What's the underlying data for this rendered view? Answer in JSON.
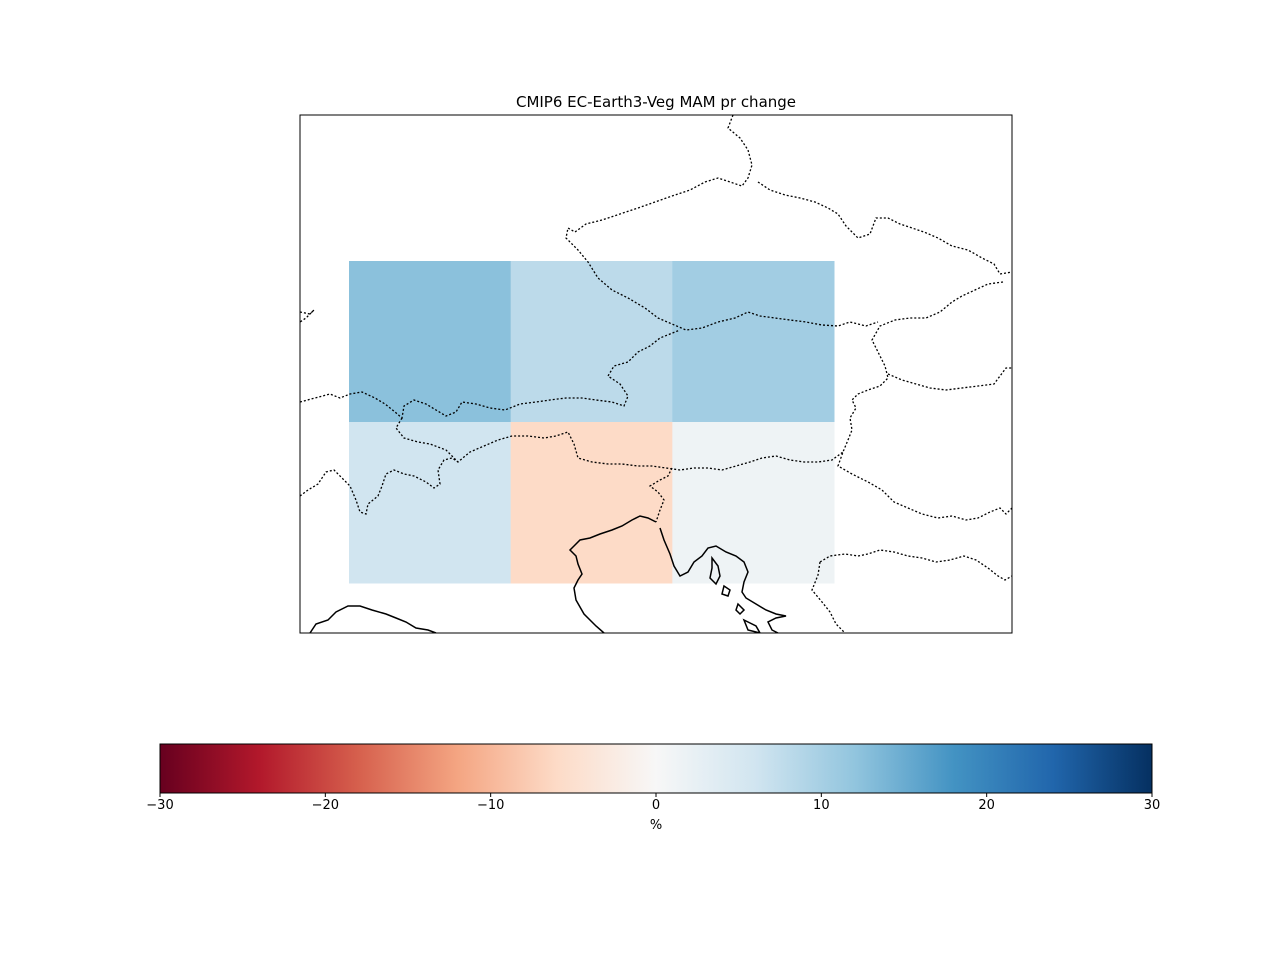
{
  "figure": {
    "title": "CMIP6 EC-Earth3-Veg MAM pr change",
    "colorbar": {
      "label": "%",
      "colormap": "RdBu",
      "vmin": -30,
      "vmax": 30,
      "ticks": [
        -30,
        -20,
        -10,
        0,
        10,
        20,
        30
      ],
      "tick_labels": [
        "−30",
        "−20",
        "−10",
        "0",
        "10",
        "20",
        "30"
      ]
    }
  },
  "chart_data": {
    "type": "heatmap",
    "title": "CMIP6 EC-Earth3-Veg MAM pr change",
    "variable": "pr",
    "season": "MAM",
    "unit": "%",
    "colormap": "RdBu",
    "value_range": [
      -30,
      30
    ],
    "grid_rows": 2,
    "grid_cols": 3,
    "cells": [
      [
        12.5,
        8.0,
        10.5
      ],
      [
        6.0,
        -6.0,
        1.5
      ]
    ]
  }
}
